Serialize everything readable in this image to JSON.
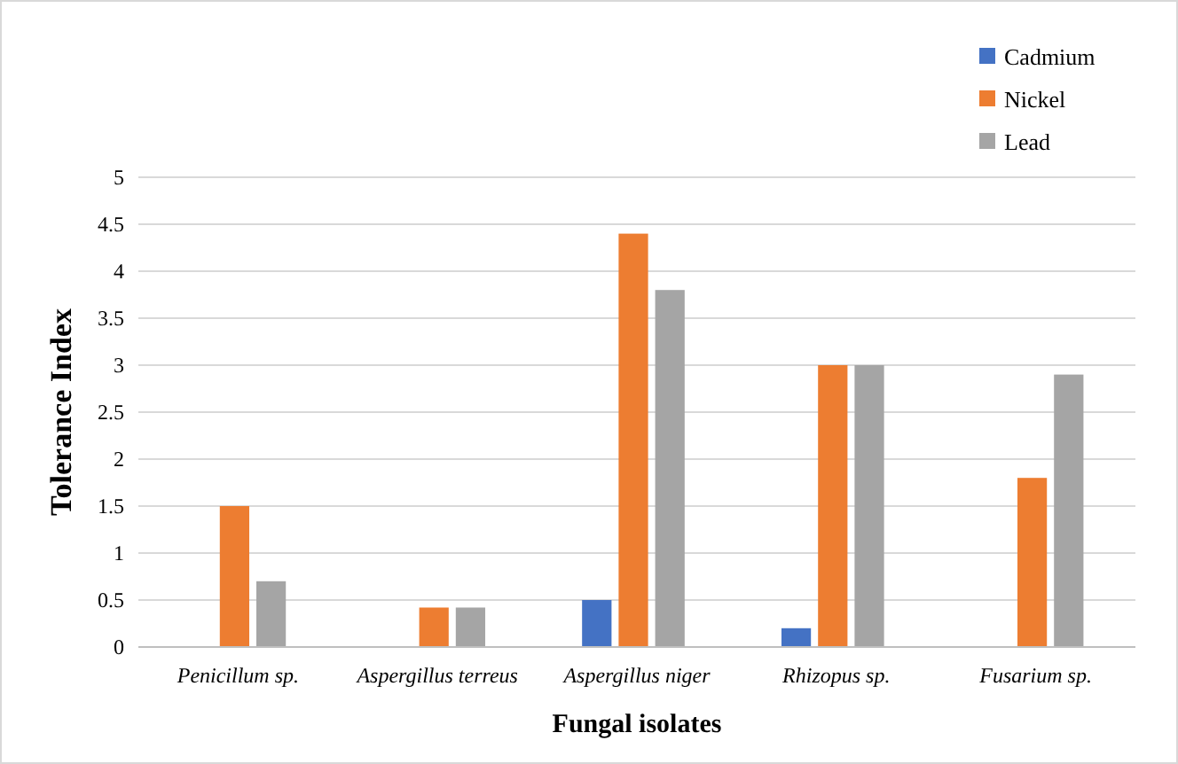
{
  "chart_data": {
    "type": "bar",
    "xlabel": "Fungal isolates",
    "ylabel": "Tolerance Index",
    "categories": [
      "Penicillum sp.",
      "Aspergillus terreus",
      "Aspergillus niger",
      "Rhizopus sp.",
      "Fusarium sp."
    ],
    "series": [
      {
        "name": "Cadmium",
        "color": "#4472c4",
        "values": [
          0,
          0,
          0.5,
          0.2,
          0
        ]
      },
      {
        "name": "Nickel",
        "color": "#ed7d31",
        "values": [
          1.5,
          0.42,
          4.4,
          3.0,
          1.8
        ]
      },
      {
        "name": "Lead",
        "color": "#a5a5a5",
        "values": [
          0.7,
          0.42,
          3.8,
          3.0,
          2.9
        ]
      }
    ],
    "ylim": [
      0,
      5
    ],
    "yticks": [
      0,
      0.5,
      1,
      1.5,
      2,
      2.5,
      3,
      3.5,
      4,
      4.5,
      5
    ],
    "grid": "y",
    "legend": "top right"
  }
}
